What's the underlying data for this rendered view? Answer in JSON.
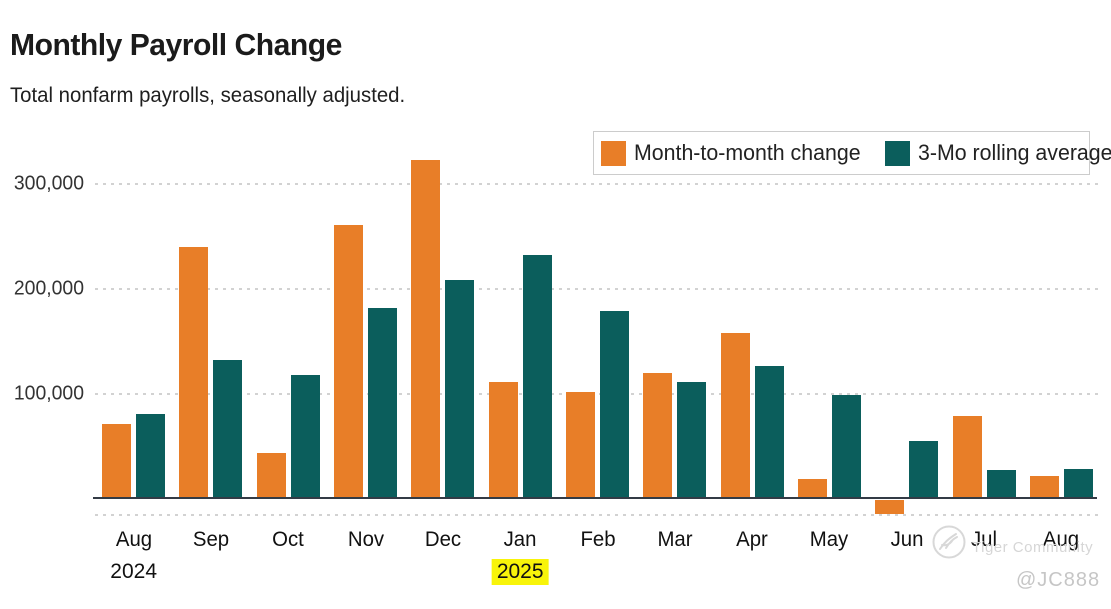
{
  "header": {
    "title": "Monthly Payroll Change",
    "subtitle": "Total nonfarm payrolls, seasonally adjusted."
  },
  "watermark": {
    "brand": "Tiger Community",
    "handle": "@JC888"
  },
  "colors": {
    "month_change_orange": "#E87E28",
    "rolling_avg_teal": "#0B5E5C",
    "year_highlight_yellow": "#F8F40A",
    "gridline_gray": "#d2d2d2",
    "axis_line": "#333b45"
  },
  "chart_data": {
    "type": "bar",
    "title": "Monthly Payroll Change",
    "subtitle": "Total nonfarm payrolls, seasonally adjusted.",
    "categories": [
      "Aug 2024",
      "Sep 2024",
      "Oct 2024",
      "Nov 2024",
      "Dec 2024",
      "Jan 2025",
      "Feb 2025",
      "Mar 2025",
      "Apr 2025",
      "May 2025",
      "Jun 2025",
      "Jul 2025",
      "Aug 2025"
    ],
    "series": [
      {
        "key": "m2m",
        "name": "Month-to-month change",
        "color": "#E87E28",
        "values": [
          71000,
          240000,
          44000,
          261000,
          323000,
          111000,
          102000,
          120000,
          158000,
          19000,
          -13000,
          79000,
          22000
        ]
      },
      {
        "key": "roll3mo",
        "name": "3-Mo rolling average",
        "color": "#0B5E5C",
        "values": [
          81000,
          132000,
          118000,
          182000,
          209000,
          232000,
          179000,
          111000,
          127000,
          99000,
          55000,
          28000,
          29000
        ]
      }
    ],
    "x_axis": {
      "months": [
        {
          "label": "Aug",
          "year": "2024",
          "year_highlight": false
        },
        {
          "label": "Sep"
        },
        {
          "label": "Oct"
        },
        {
          "label": "Nov"
        },
        {
          "label": "Dec"
        },
        {
          "label": "Jan",
          "year": "2025",
          "year_highlight": true
        },
        {
          "label": "Feb"
        },
        {
          "label": "Mar"
        },
        {
          "label": "Apr"
        },
        {
          "label": "May"
        },
        {
          "label": "Jun"
        },
        {
          "label": "Jul"
        },
        {
          "label": "Aug"
        }
      ]
    },
    "y_axis": {
      "ticks": [
        {
          "value": 300000,
          "label": "300,000"
        },
        {
          "value": 200000,
          "label": "200,000"
        },
        {
          "value": 100000,
          "label": "100,000"
        }
      ],
      "ylim": [
        -20000,
        340000
      ]
    },
    "grid": "horizontal-dashed",
    "legend_position": "top-right"
  }
}
